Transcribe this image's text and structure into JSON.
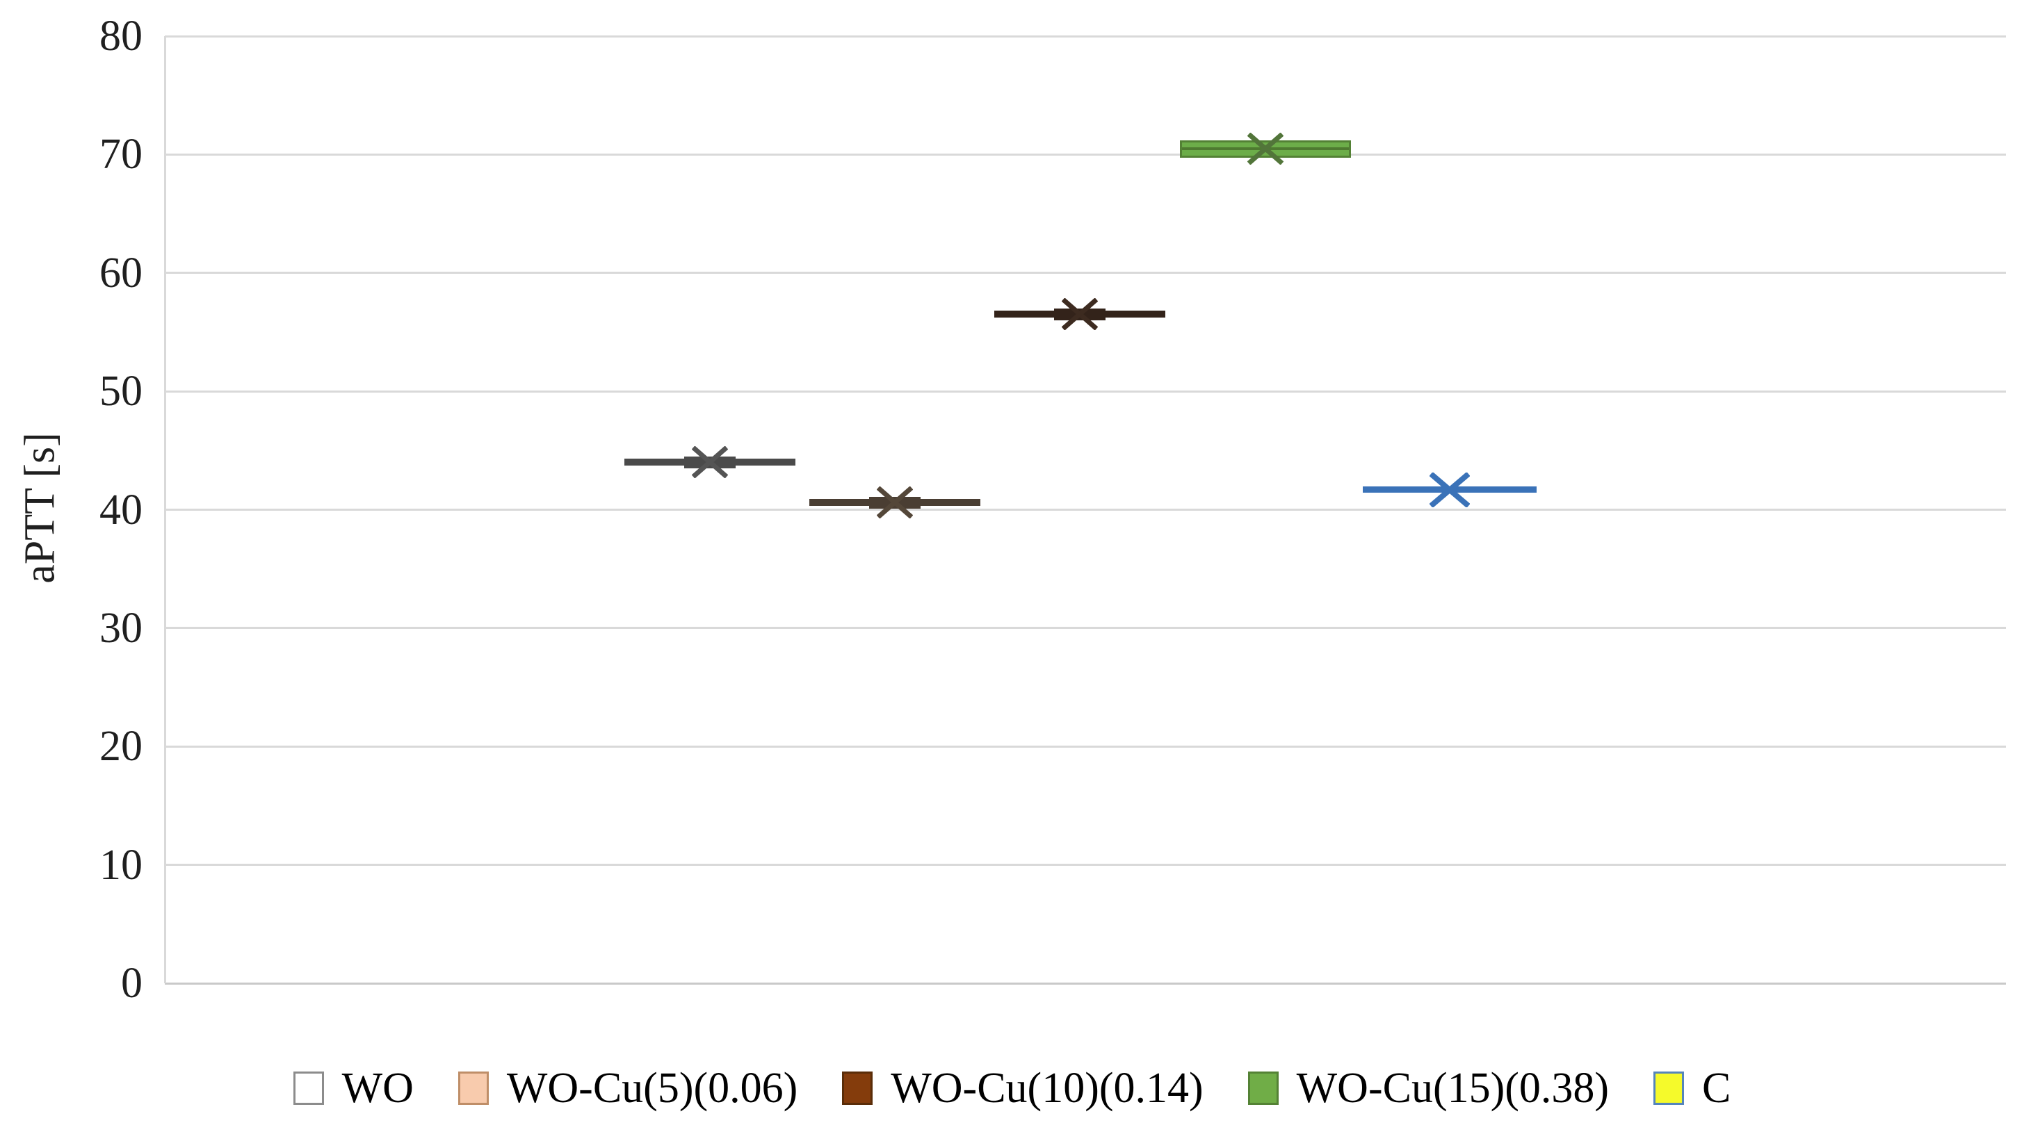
{
  "figure": {
    "background": "#ffffff"
  },
  "chart_data": {
    "type": "box",
    "title": "",
    "xlabel": "",
    "ylabel": "aPTT [s]",
    "ylim": [
      0,
      80
    ],
    "yticks": [
      80,
      70,
      60,
      50,
      40,
      30,
      20,
      10,
      0
    ],
    "grid": "horizontal-only",
    "gridline_color": "#d9d9d9",
    "legend_position": "bottom-center",
    "mean_marker": "x-cross",
    "series": [
      {
        "name": "WO",
        "style": "flat",
        "mean": 44.0,
        "median": 44.0,
        "q1": 43.7,
        "q3": 44.4,
        "min": 43.6,
        "max": 44.5,
        "x_fraction": 0.2961,
        "line_color": "#4a4a4a",
        "marker_color": "#545454",
        "legend_fill": "#ffffff",
        "legend_border": "#8c8c8c"
      },
      {
        "name": "WO-Cu(5)(0.06)",
        "style": "flat",
        "mean": 40.6,
        "median": 40.6,
        "q1": 40.3,
        "q3": 41.0,
        "min": 40.2,
        "max": 41.1,
        "x_fraction": 0.3965,
        "line_color": "#4a3e33",
        "marker_color": "#544739",
        "legend_fill": "#f8cbad",
        "legend_border": "#bf8e68"
      },
      {
        "name": "WO-Cu(10)(0.14)",
        "style": "flat",
        "mean": 56.5,
        "median": 56.5,
        "q1": 56.2,
        "q3": 56.9,
        "min": 56.1,
        "max": 57.0,
        "x_fraction": 0.497,
        "line_color": "#33231a",
        "marker_color": "#3d2b20",
        "legend_fill": "#843c0c",
        "legend_border": "#5a2d09"
      },
      {
        "name": "WO-Cu(15)(0.38)",
        "style": "box",
        "mean": 70.5,
        "median": 70.5,
        "q1": 69.7,
        "q3": 71.2,
        "min": 69.6,
        "max": 71.3,
        "x_fraction": 0.5978,
        "fill_color": "#6cad49",
        "border_color": "#538135",
        "median_color": "#4e7a30",
        "marker_color": "#52753a",
        "legend_fill": "#70ad47",
        "legend_border": "#548235"
      },
      {
        "name": "C",
        "style": "line",
        "mean": 41.7,
        "median": 41.7,
        "q1": 41.5,
        "q3": 41.9,
        "min": 41.4,
        "max": 42.0,
        "x_fraction": 0.6979,
        "line_color": "#3a72b8",
        "marker_color": "#3a72b8",
        "legend_fill": "#f5fa2b",
        "legend_border": "#5585bb"
      }
    ]
  }
}
